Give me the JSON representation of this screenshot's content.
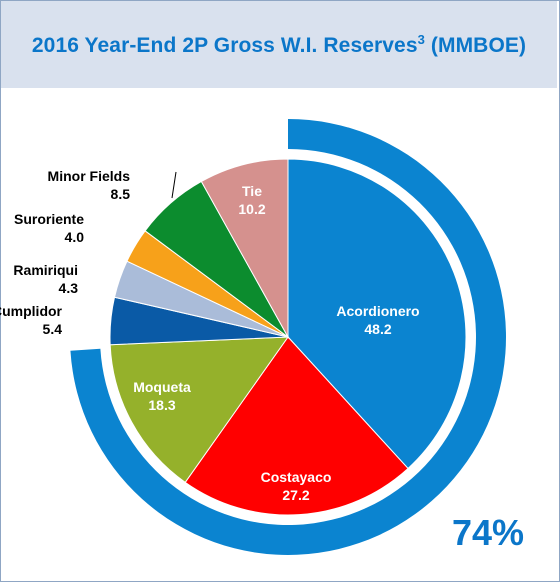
{
  "title": "2016 Year-End 2P Gross W.I. Reserves",
  "title_superscript": "3",
  "title_unit": "(MMBOE)",
  "chart_data": {
    "type": "pie",
    "title": "2016 Year-End 2P Gross W.I. Reserves3 (MMBOE)",
    "slices": [
      {
        "label": "Acordionero",
        "value": 48.2,
        "color": "#0b84d0",
        "label_color": "#ffffff",
        "label_inside": true
      },
      {
        "label": "Costayaco",
        "value": 27.2,
        "color": "#ff0000",
        "label_color": "#ffffff",
        "label_inside": true
      },
      {
        "label": "Moqueta",
        "value": 18.3,
        "color": "#95b12b",
        "label_color": "#ffffff",
        "label_inside": true
      },
      {
        "label": "Cumplidor",
        "value": 5.4,
        "color": "#0a5aa6",
        "label_color": "#000000",
        "label_inside": false
      },
      {
        "label": "Ramiriqui",
        "value": 4.3,
        "color": "#aabcd9",
        "label_color": "#000000",
        "label_inside": false
      },
      {
        "label": "Suroriente",
        "value": 4.0,
        "color": "#f7a11a",
        "label_color": "#000000",
        "label_inside": false
      },
      {
        "label": "Minor Fields",
        "value": 8.5,
        "color": "#0c8c2e",
        "label_color": "#000000",
        "label_inside": false
      },
      {
        "label": "Tie",
        "value": 10.2,
        "color": "#d5918e",
        "label_color": "#ffffff",
        "label_inside": true
      }
    ],
    "outer_ring": {
      "value_label": "74%",
      "fraction": 0.74,
      "color": "#0b84d0"
    }
  }
}
